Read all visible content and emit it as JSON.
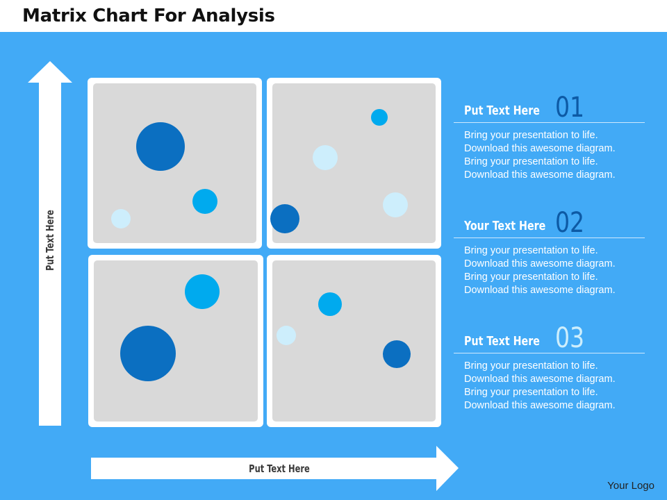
{
  "slide": {
    "title": "Matrix Chart For Analysis",
    "logo": "Your Logo"
  },
  "axes": {
    "y_label": "Put Text Here",
    "x_label": "Put Text Here"
  },
  "colors": {
    "background": "#42aaf6",
    "dark_bubble": "#0b6fc1",
    "mid_bubble": "#00aaee",
    "light_bubble": "#cdeefc",
    "quadrant_fill": "#d9d9d9",
    "number_dark": "#0d5aa5",
    "number_light": "#cdeefc"
  },
  "quadrants": [
    {
      "id": "top-left",
      "bubbles": [
        {
          "tone": "dark"
        },
        {
          "tone": "mid"
        },
        {
          "tone": "light"
        }
      ]
    },
    {
      "id": "top-right",
      "bubbles": [
        {
          "tone": "mid"
        },
        {
          "tone": "light"
        },
        {
          "tone": "light"
        },
        {
          "tone": "dark"
        }
      ]
    },
    {
      "id": "bottom-left",
      "bubbles": [
        {
          "tone": "mid"
        },
        {
          "tone": "dark"
        }
      ]
    },
    {
      "id": "bottom-right",
      "bubbles": [
        {
          "tone": "mid"
        },
        {
          "tone": "light"
        },
        {
          "tone": "dark"
        }
      ]
    }
  ],
  "items": [
    {
      "title": "Put Text Here",
      "number": "01",
      "number_color": "#0d5aa5",
      "lines": [
        "Bring your presentation to life.",
        "Download this awesome diagram.",
        "Bring your presentation to life.",
        "Download this awesome diagram."
      ]
    },
    {
      "title": "Your Text Here",
      "number": "02",
      "number_color": "#0d5aa5",
      "lines": [
        "Bring your presentation to life.",
        "Download this awesome diagram.",
        "Bring your presentation to life.",
        "Download this awesome diagram."
      ]
    },
    {
      "title": "Put Text Here",
      "number": "03",
      "number_color": "#cdeefc",
      "lines": [
        "Bring your presentation to life.",
        "Download this awesome diagram.",
        "Bring your presentation to life.",
        "Download this awesome diagram."
      ]
    }
  ]
}
